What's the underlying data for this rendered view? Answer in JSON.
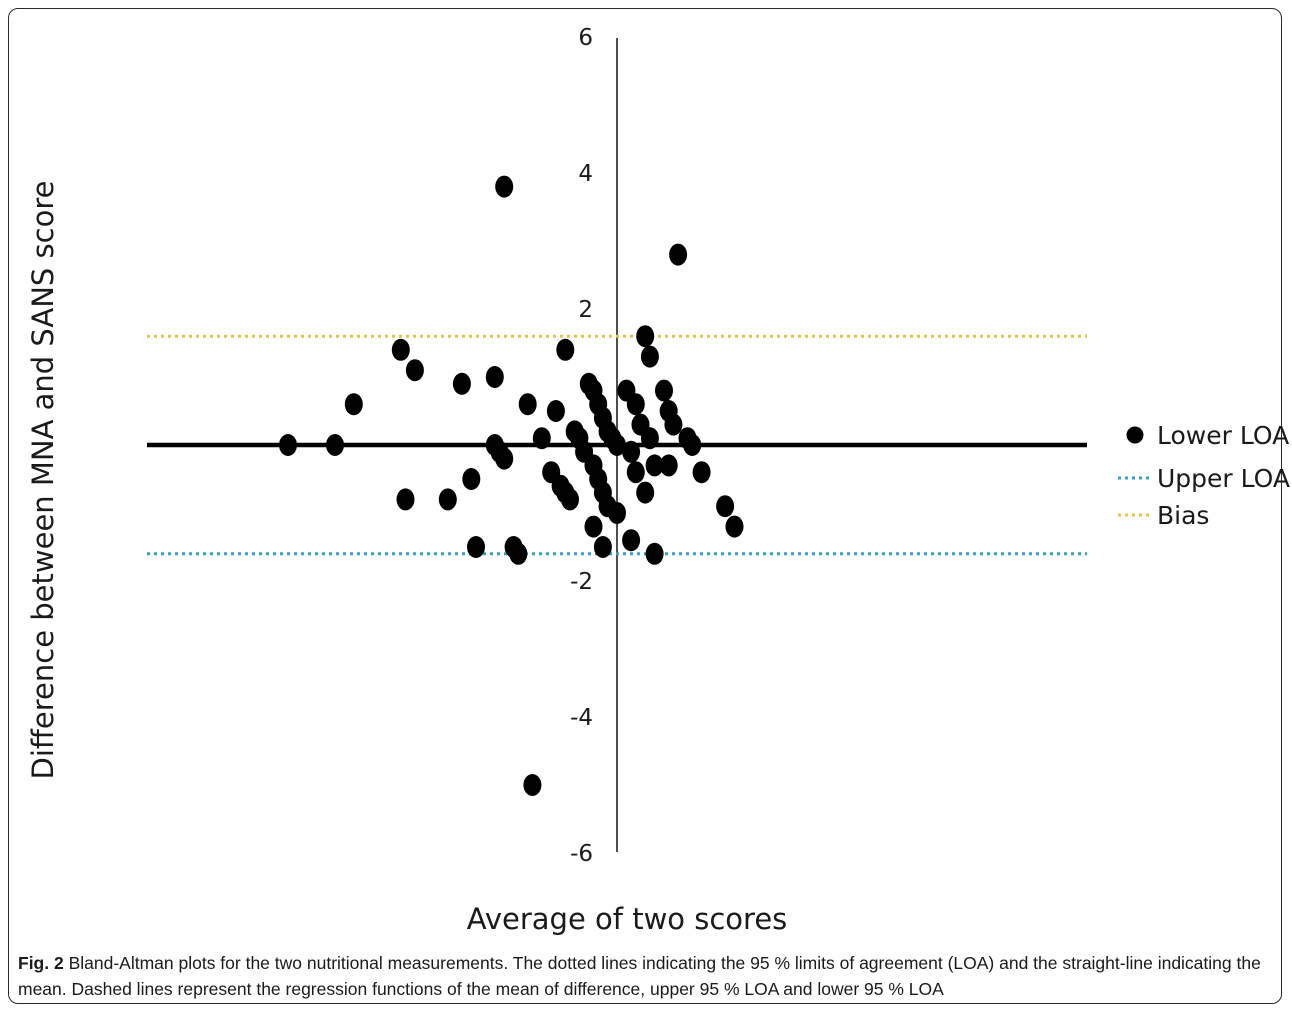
{
  "chart_data": {
    "type": "scatter",
    "ylabel": "Difference between MNA and SANS score",
    "xlabel": "Average of two scores",
    "y_ticks": [
      "6",
      "4",
      "2",
      "-2",
      "-4",
      "-6"
    ],
    "ylim": [
      -6,
      6
    ],
    "xlim": [
      -9,
      9
    ],
    "mean_line": 0,
    "upper_dotted_line": 1.6,
    "lower_dotted_line": -1.6,
    "legend": [
      {
        "label": "Lower LOA",
        "marker": "circle",
        "color": "#000000"
      },
      {
        "label": "Upper LOA",
        "marker": "dotted-line",
        "color": "#3a9fc4"
      },
      {
        "label": "Bias",
        "marker": "dotted-line",
        "color": "#e8c34a"
      }
    ],
    "legend_position": "right",
    "points": [
      {
        "x": -7.0,
        "y": 0.0
      },
      {
        "x": -6.0,
        "y": 0.0
      },
      {
        "x": -5.6,
        "y": 0.6
      },
      {
        "x": -4.6,
        "y": 1.4
      },
      {
        "x": -4.3,
        "y": 1.1
      },
      {
        "x": -4.5,
        "y": -0.8
      },
      {
        "x": -3.6,
        "y": -0.8
      },
      {
        "x": -3.3,
        "y": 0.9
      },
      {
        "x": -3.1,
        "y": -0.5
      },
      {
        "x": -3.0,
        "y": -1.5
      },
      {
        "x": -2.6,
        "y": 1.0
      },
      {
        "x": -2.6,
        "y": 0.0
      },
      {
        "x": -2.5,
        "y": -0.1
      },
      {
        "x": -2.4,
        "y": -0.2
      },
      {
        "x": -2.4,
        "y": 3.8
      },
      {
        "x": -2.2,
        "y": -1.5
      },
      {
        "x": -2.1,
        "y": -1.6
      },
      {
        "x": -1.9,
        "y": 0.6
      },
      {
        "x": -1.6,
        "y": 0.1
      },
      {
        "x": -1.8,
        "y": -5.0
      },
      {
        "x": -1.3,
        "y": 0.5
      },
      {
        "x": -1.4,
        "y": -0.4
      },
      {
        "x": -1.2,
        "y": -0.6
      },
      {
        "x": -1.1,
        "y": -0.7
      },
      {
        "x": -1.0,
        "y": -0.8
      },
      {
        "x": -1.1,
        "y": 1.4
      },
      {
        "x": -0.9,
        "y": 0.2
      },
      {
        "x": -0.8,
        "y": 0.1
      },
      {
        "x": -0.7,
        "y": -0.1
      },
      {
        "x": -0.6,
        "y": 0.9
      },
      {
        "x": -0.5,
        "y": 0.8
      },
      {
        "x": -0.4,
        "y": 0.6
      },
      {
        "x": -0.5,
        "y": -0.3
      },
      {
        "x": -0.4,
        "y": -0.5
      },
      {
        "x": -0.3,
        "y": -0.7
      },
      {
        "x": -0.3,
        "y": 0.4
      },
      {
        "x": -0.2,
        "y": 0.2
      },
      {
        "x": -0.2,
        "y": -0.9
      },
      {
        "x": -0.1,
        "y": 0.1
      },
      {
        "x": 0.0,
        "y": 0.0
      },
      {
        "x": 0.0,
        "y": -1.0
      },
      {
        "x": -0.5,
        "y": -1.2
      },
      {
        "x": -0.3,
        "y": -1.5
      },
      {
        "x": 0.3,
        "y": -1.4
      },
      {
        "x": 0.2,
        "y": 0.8
      },
      {
        "x": 0.4,
        "y": 0.6
      },
      {
        "x": 0.3,
        "y": -0.1
      },
      {
        "x": 0.4,
        "y": -0.4
      },
      {
        "x": 0.5,
        "y": 0.3
      },
      {
        "x": 0.6,
        "y": 1.6
      },
      {
        "x": 0.7,
        "y": 1.3
      },
      {
        "x": 0.7,
        "y": 0.1
      },
      {
        "x": 0.8,
        "y": -0.3
      },
      {
        "x": 0.6,
        "y": -0.7
      },
      {
        "x": 0.8,
        "y": -1.6
      },
      {
        "x": 1.0,
        "y": 0.8
      },
      {
        "x": 1.1,
        "y": 0.5
      },
      {
        "x": 1.2,
        "y": 0.3
      },
      {
        "x": 1.1,
        "y": -0.3
      },
      {
        "x": 1.3,
        "y": 2.8
      },
      {
        "x": 1.5,
        "y": 0.1
      },
      {
        "x": 1.6,
        "y": 0.0
      },
      {
        "x": 1.8,
        "y": -0.4
      },
      {
        "x": 2.3,
        "y": -0.9
      },
      {
        "x": 2.5,
        "y": -1.2
      }
    ]
  },
  "caption": {
    "label": "Fig. 2",
    "text": " Bland-Altman plots for the two nutritional measurements. The dotted lines indicating the 95 % limits of agreement (LOA) and the straight-line indicating the mean. Dashed lines represent the regression functions of the mean of difference, upper 95 % LOA and lower 95 % LOA"
  }
}
